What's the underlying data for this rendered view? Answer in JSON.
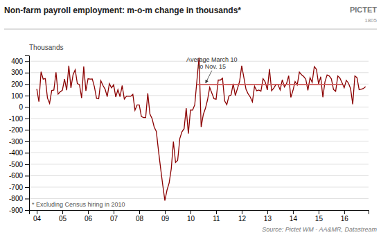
{
  "chart_data": {
    "type": "line",
    "title": "Non-farm payroll employment: m-o-m change in thousands*",
    "y_label": "Thousands",
    "annotations": [
      {
        "text": "Average March 10\nto Nov. 15"
      },
      {
        "text": "* Excluding Census hiring in 2010"
      },
      {
        "text": "Source: Pictet WM - AA&MR, Datastream"
      },
      {
        "text": "PICTET"
      },
      {
        "text": "1805"
      }
    ],
    "series": [
      {
        "color": "#8B0000",
        "x": [
          2004.0,
          2004.083,
          2004.167,
          2004.25,
          2004.333,
          2004.417,
          2004.5,
          2004.583,
          2004.667,
          2004.75,
          2004.833,
          2004.917,
          2005.0,
          2005.083,
          2005.167,
          2005.25,
          2005.333,
          2005.417,
          2005.5,
          2005.583,
          2005.667,
          2005.75,
          2005.833,
          2005.917,
          2006.0,
          2006.083,
          2006.167,
          2006.25,
          2006.333,
          2006.417,
          2006.5,
          2006.583,
          2006.667,
          2006.75,
          2006.833,
          2006.917,
          2007.0,
          2007.083,
          2007.167,
          2007.25,
          2007.333,
          2007.417,
          2007.5,
          2007.583,
          2007.667,
          2007.75,
          2007.833,
          2007.917,
          2008.0,
          2008.083,
          2008.167,
          2008.25,
          2008.333,
          2008.417,
          2008.5,
          2008.583,
          2008.667,
          2008.75,
          2008.833,
          2008.917,
          2009.0,
          2009.083,
          2009.167,
          2009.25,
          2009.333,
          2009.417,
          2009.5,
          2009.583,
          2009.667,
          2009.75,
          2009.833,
          2009.917,
          2010.0,
          2010.083,
          2010.167,
          2010.25,
          2010.333,
          2010.417,
          2010.5,
          2010.583,
          2010.667,
          2010.75,
          2010.833,
          2010.917,
          2011.0,
          2011.083,
          2011.167,
          2011.25,
          2011.333,
          2011.417,
          2011.5,
          2011.583,
          2011.667,
          2011.75,
          2011.833,
          2011.917,
          2012.0,
          2012.083,
          2012.167,
          2012.25,
          2012.333,
          2012.417,
          2012.5,
          2012.583,
          2012.667,
          2012.75,
          2012.833,
          2012.917,
          2013.0,
          2013.083,
          2013.167,
          2013.25,
          2013.333,
          2013.417,
          2013.5,
          2013.583,
          2013.667,
          2013.75,
          2013.833,
          2013.917,
          2014.0,
          2014.083,
          2014.167,
          2014.25,
          2014.333,
          2014.417,
          2014.5,
          2014.583,
          2014.667,
          2014.75,
          2014.833,
          2014.917,
          2015.0,
          2015.083,
          2015.167,
          2015.25,
          2015.333,
          2015.417,
          2015.5,
          2015.583,
          2015.667,
          2015.75,
          2015.833,
          2015.917,
          2016.0,
          2016.083,
          2016.167,
          2016.25,
          2016.333,
          2016.417,
          2016.5,
          2016.583,
          2016.667,
          2016.75,
          2016.833
        ],
        "values": [
          159,
          46,
          308,
          243,
          248,
          78,
          32,
          144,
          148,
          303,
          112,
          133,
          146,
          243,
          146,
          360,
          166,
          282,
          325,
          204,
          195,
          78,
          354,
          140,
          247,
          243,
          245,
          175,
          75,
          72,
          229,
          188,
          156,
          90,
          204,
          167,
          194,
          87,
          152,
          90,
          188,
          69,
          93,
          93,
          93,
          110,
          -28,
          18,
          18,
          -83,
          -93,
          -93,
          120,
          -62,
          -100,
          -175,
          -214,
          -380,
          -533,
          -681,
          -818,
          -726,
          -663,
          -539,
          -303,
          -484,
          -466,
          -276,
          -216,
          -190,
          -11,
          -232,
          -26,
          -27,
          19,
          229,
          432,
          -175,
          -66,
          -12,
          64,
          171,
          121,
          72,
          68,
          235,
          235,
          251,
          53,
          20,
          96,
          104,
          202,
          100,
          161,
          223,
          360,
          259,
          154,
          115,
          87,
          45,
          181,
          142,
          148,
          138,
          247,
          219,
          148,
          332,
          142,
          165,
          195,
          195,
          149,
          238,
          175,
          204,
          274,
          84,
          144,
          222,
          192,
          304,
          282,
          267,
          243,
          145,
          256,
          214,
          353,
          329,
          201,
          264,
          85,
          221,
          280,
          271,
          245,
          153,
          137,
          271,
          252,
          211,
          168,
          233,
          208,
          160,
          24,
          271,
          255,
          151,
          156,
          161,
          178
        ]
      },
      {
        "color": "#CD5C5C",
        "x": [
          2010.25,
          2015.92
        ],
        "values": [
          197,
          197
        ]
      }
    ],
    "xlim": [
      2003.7,
      2016.95
    ],
    "xticks": [
      {
        "value": 2004,
        "label": "04"
      },
      {
        "value": 2005,
        "label": "05"
      },
      {
        "value": 2006,
        "label": "06"
      },
      {
        "value": 2007,
        "label": "07"
      },
      {
        "value": 2008,
        "label": "08"
      },
      {
        "value": 2009,
        "label": "09"
      },
      {
        "value": 2010,
        "label": "10"
      },
      {
        "value": 2011,
        "label": "11"
      },
      {
        "value": 2012,
        "label": "12"
      },
      {
        "value": 2013,
        "label": "13"
      },
      {
        "value": 2014,
        "label": "14"
      },
      {
        "value": 2015,
        "label": "15"
      },
      {
        "value": 2016,
        "label": "16"
      }
    ],
    "ylim": [
      -900,
      450
    ],
    "yticks": [
      -900,
      -800,
      -700,
      -600,
      -500,
      -400,
      -300,
      -200,
      -100,
      0,
      100,
      200,
      300,
      400
    ],
    "grid": true
  }
}
